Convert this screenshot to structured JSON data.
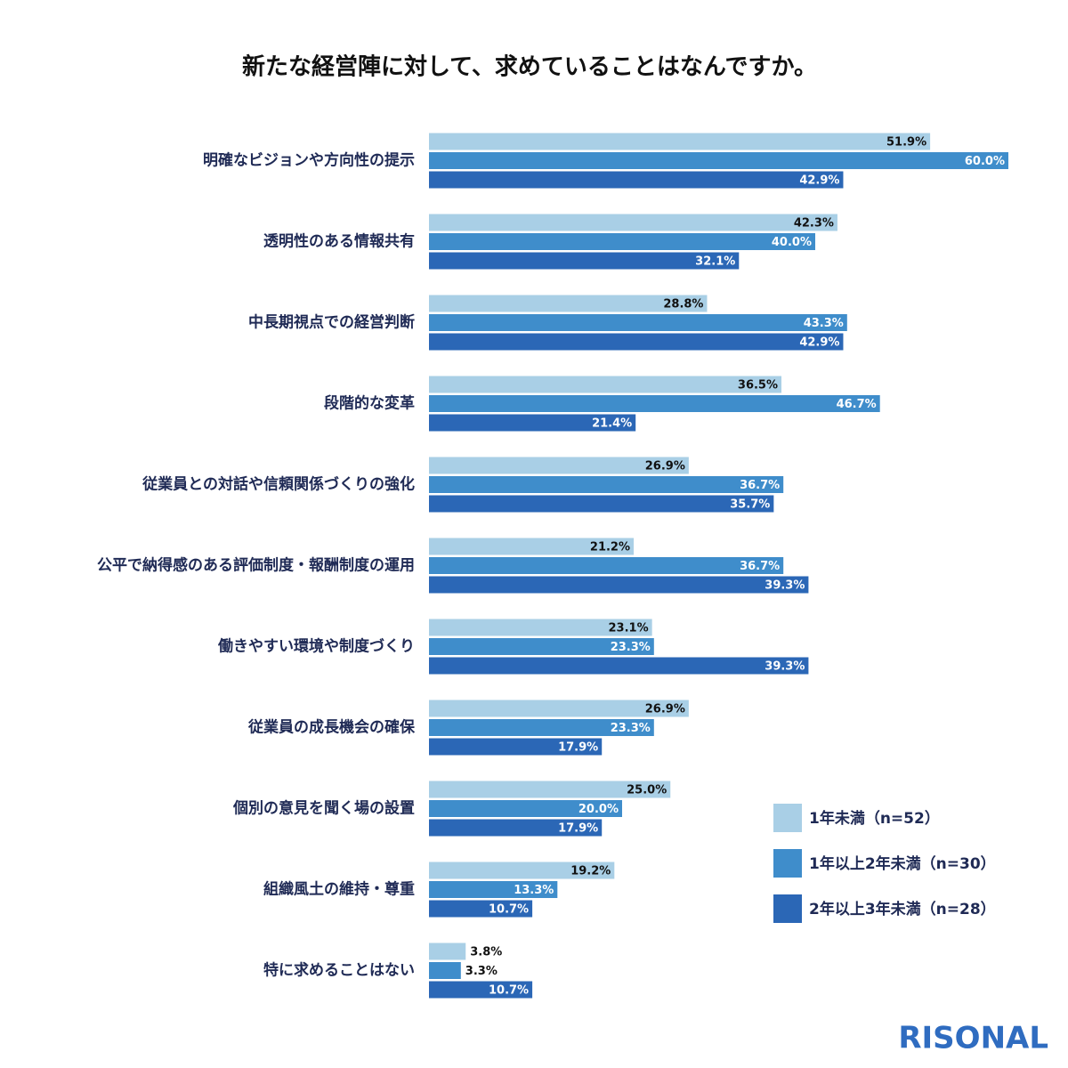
{
  "chart_data": {
    "type": "hbar",
    "title": "新たな経営陣に対して、求めていることはなんですか。",
    "categories": [
      "明確なビジョンや方向性の提示",
      "透明性のある情報共有",
      "中長期視点での経営判断",
      "段階的な変革",
      "従業員との対話や信頼関係づくりの強化",
      "公平で納得感のある評価制度・報酬制度の運用",
      "働きやすい環境や制度づくり",
      "従業員の成長機会の確保",
      "個別の意見を聞く場の設置",
      "組織風土の維持・尊重",
      "特に求めることはない"
    ],
    "series": [
      {
        "name": "1年未満（n=52）",
        "color": "#a9cfe6",
        "values": [
          51.9,
          42.3,
          28.8,
          36.5,
          26.9,
          21.2,
          23.1,
          26.9,
          25.0,
          19.2,
          3.8
        ],
        "value_labels": [
          "51.9%",
          "42.3%",
          "28.8%",
          "36.5%",
          "26.9%",
          "21.2%",
          "23.1%",
          "26.9%",
          "25.0%",
          "19.2%",
          "3.8%"
        ]
      },
      {
        "name": "1年以上2年未満（n=30）",
        "color": "#3f8dcb",
        "values": [
          60.0,
          40.0,
          43.3,
          46.7,
          36.7,
          36.7,
          23.3,
          23.3,
          20.0,
          13.3,
          3.3
        ],
        "value_labels": [
          "60.0%",
          "40.0%",
          "43.3%",
          "46.7%",
          "36.7%",
          "36.7%",
          "23.3%",
          "23.3%",
          "20.0%",
          "13.3%",
          "3.3%"
        ]
      },
      {
        "name": "2年以上3年未満（n=28）",
        "color": "#2b67b6",
        "values": [
          42.9,
          32.1,
          42.9,
          21.4,
          35.7,
          39.3,
          39.3,
          17.9,
          17.9,
          10.7,
          10.7
        ],
        "value_labels": [
          "42.9%",
          "32.1%",
          "42.9%",
          "21.4%",
          "35.7%",
          "39.3%",
          "39.3%",
          "17.9%",
          "17.9%",
          "10.7%",
          "10.7%"
        ]
      }
    ],
    "legend": "bottom-right"
  },
  "logo": "RISONAL"
}
